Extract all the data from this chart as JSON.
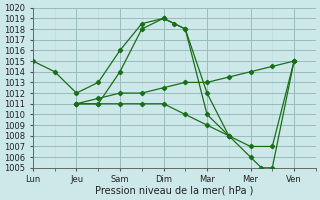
{
  "xlabel": "Pression niveau de la mer( hPa )",
  "background_color": "#cce8e8",
  "grid_major_color": "#99bbbb",
  "grid_minor_color": "#bbdddd",
  "line_color": "#1a6e1a",
  "ylim": [
    1005,
    1020
  ],
  "xlim": [
    0,
    6.5
  ],
  "x_tick_labels": [
    "Lun",
    "Jeu",
    "Sam",
    "Dim",
    "Mar",
    "Mer",
    "Ven"
  ],
  "x_tick_positions": [
    0.0,
    1.0,
    2.0,
    3.0,
    4.0,
    5.0,
    6.0
  ],
  "series": [
    {
      "x": [
        0.0,
        0.5,
        1.0,
        1.5,
        2.0,
        2.5,
        3.0,
        3.25,
        3.5,
        4.0,
        4.5
      ],
      "y": [
        1015,
        1014,
        1012,
        1013,
        1016,
        1018.5,
        1019,
        1018.5,
        1018,
        1010,
        1008
      ]
    },
    {
      "x": [
        1.0,
        1.5,
        2.0,
        2.5,
        3.0,
        3.5,
        4.0,
        4.5,
        5.0,
        5.25,
        5.5,
        6.0
      ],
      "y": [
        1011,
        1011,
        1014,
        1018,
        1019,
        1018,
        1012,
        1008,
        1006,
        1005,
        1005,
        1015
      ]
    },
    {
      "x": [
        1.0,
        1.5,
        2.0,
        2.5,
        3.0,
        3.5,
        4.0,
        4.5,
        5.0,
        5.5,
        6.0
      ],
      "y": [
        1011,
        1011.5,
        1012,
        1012,
        1012.5,
        1013,
        1013,
        1013.5,
        1014,
        1014.5,
        1015
      ]
    },
    {
      "x": [
        1.0,
        1.5,
        2.0,
        2.5,
        3.0,
        3.5,
        4.0,
        4.5,
        5.0,
        5.5,
        6.0
      ],
      "y": [
        1011,
        1011,
        1011,
        1011,
        1011,
        1010,
        1009,
        1008,
        1007,
        1007,
        1015
      ]
    }
  ]
}
